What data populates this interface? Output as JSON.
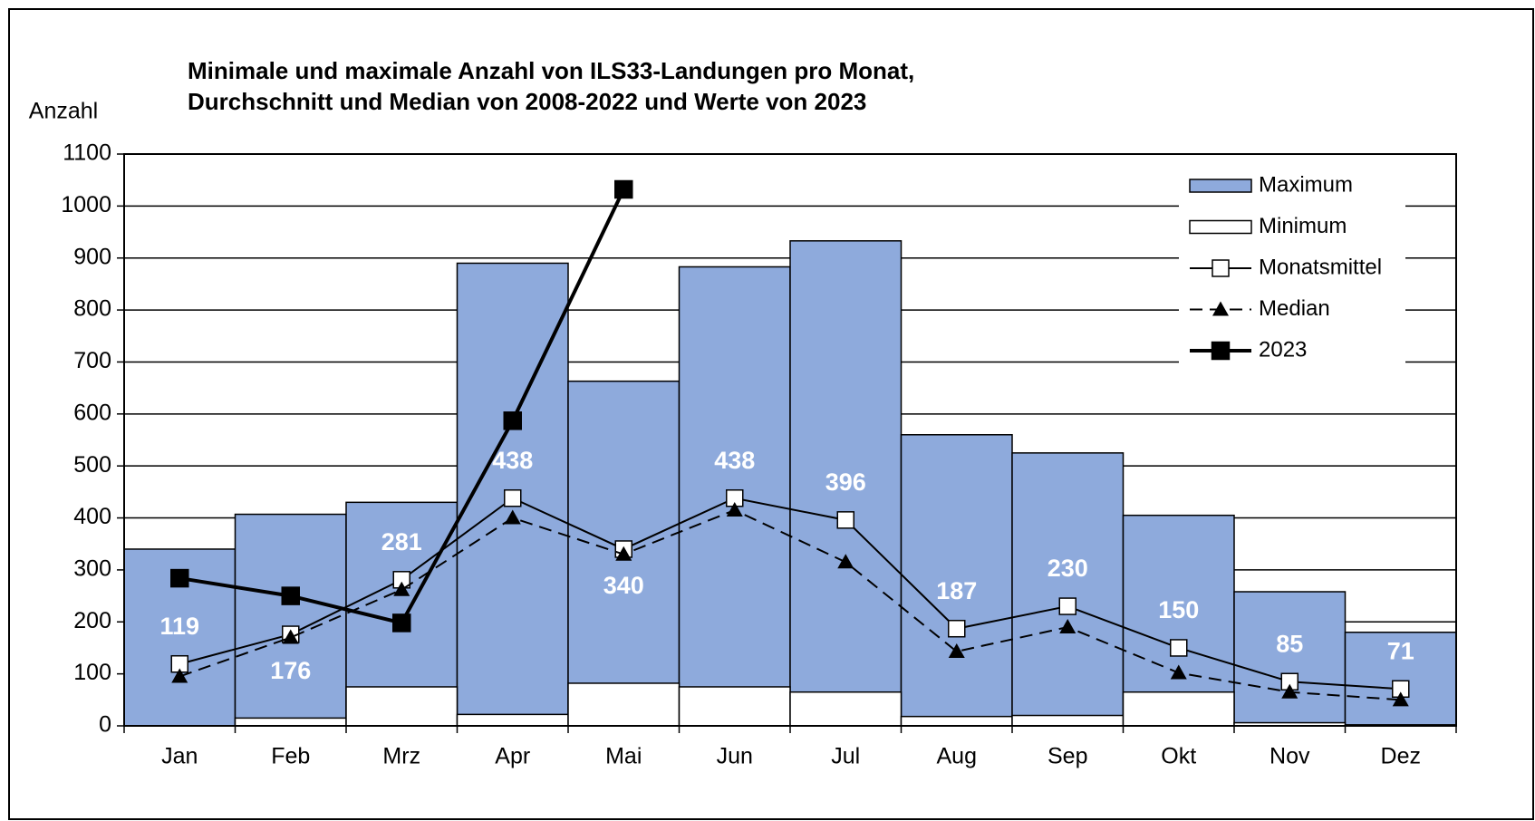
{
  "chart_data": {
    "type": "bar-line",
    "title": [
      "Minimale und maximale  Anzahl von ILS33-Landungen pro Monat,",
      "Durchschnitt und Median von 2008-2022 und Werte von 2023"
    ],
    "y_label": "Anzahl",
    "categories": [
      "Jan",
      "Feb",
      "Mrz",
      "Apr",
      "Mai",
      "Jun",
      "Jul",
      "Aug",
      "Sep",
      "Okt",
      "Nov",
      "Dez"
    ],
    "ylim": [
      0,
      1100
    ],
    "yticks": [
      0,
      100,
      200,
      300,
      400,
      500,
      600,
      700,
      800,
      900,
      1000,
      1100
    ],
    "grid": true,
    "legend": "top-right",
    "series": [
      {
        "name": "Maximum",
        "kind": "bar",
        "color": "#8eaadc",
        "values": [
          340,
          407,
          430,
          890,
          663,
          883,
          933,
          560,
          525,
          405,
          258,
          180
        ]
      },
      {
        "name": "Minimum",
        "kind": "bar",
        "color": "#ffffff",
        "values": [
          0,
          15,
          75,
          22,
          82,
          75,
          65,
          18,
          20,
          65,
          6,
          2
        ]
      },
      {
        "name": "Monatsmittel",
        "kind": "line",
        "marker": "square-open",
        "color": "#000000",
        "values": [
          119,
          176,
          281,
          438,
          340,
          438,
          396,
          187,
          230,
          150,
          85,
          71
        ],
        "labels": true
      },
      {
        "name": "Median",
        "kind": "line",
        "marker": "triangle",
        "dash": true,
        "color": "#000000",
        "values": [
          95,
          170,
          262,
          400,
          330,
          415,
          315,
          143,
          190,
          102,
          65,
          50
        ]
      },
      {
        "name": "2023",
        "kind": "line",
        "marker": "square",
        "thick": true,
        "color": "#000000",
        "values": [
          284,
          250,
          198,
          587,
          1032,
          null,
          null,
          null,
          null,
          null,
          null,
          null
        ]
      }
    ]
  }
}
